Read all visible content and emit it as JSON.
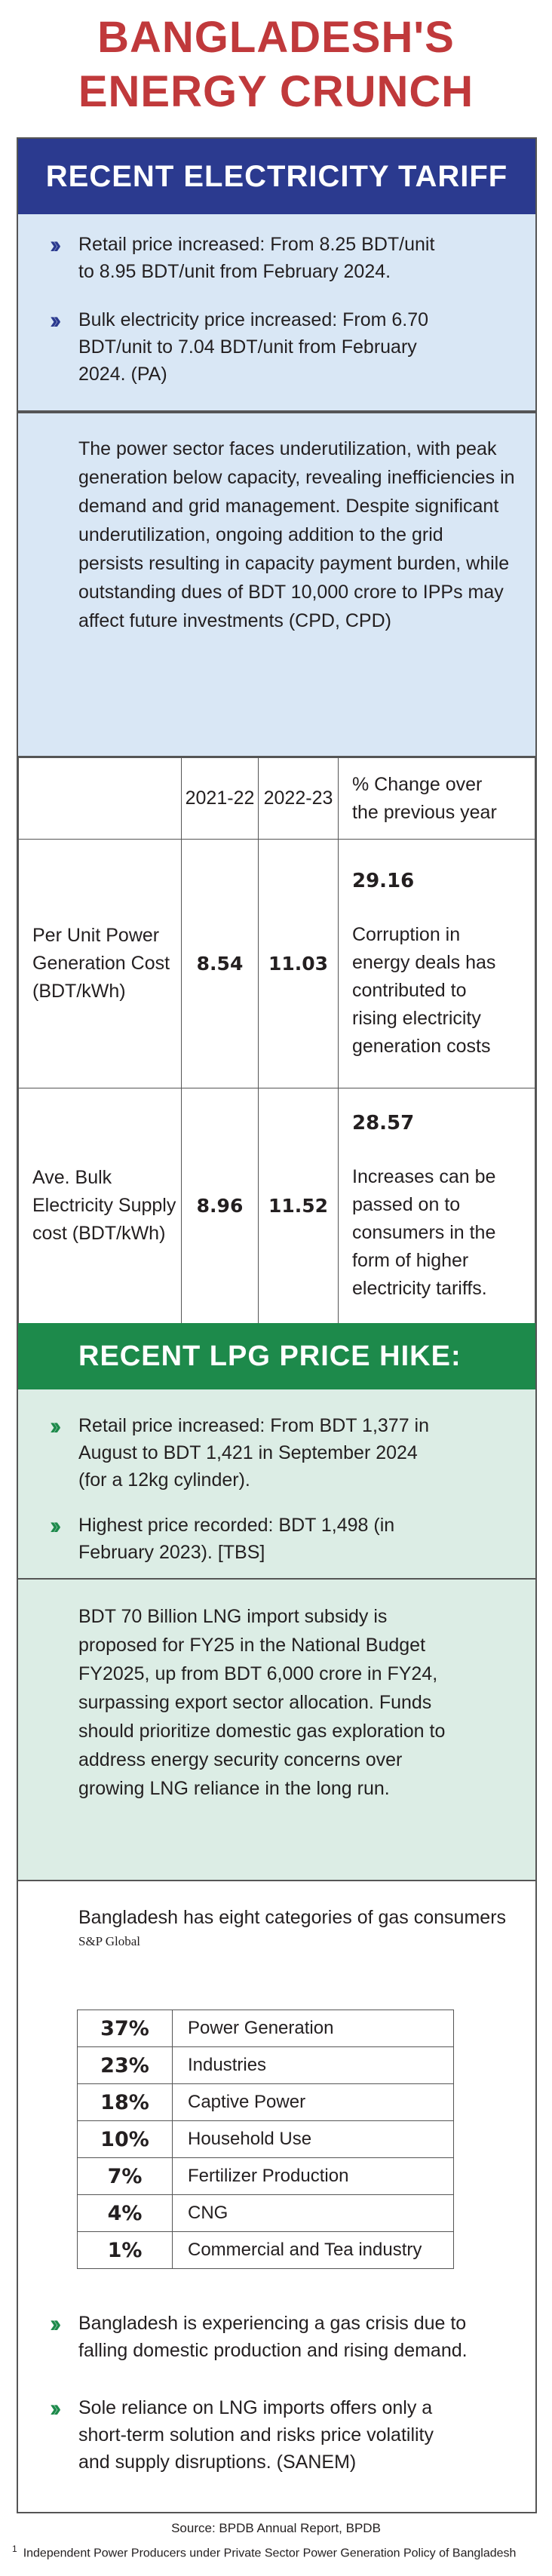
{
  "title": {
    "line1": "BANGLADESH'S",
    "line2": "ENERGY CRUNCH"
  },
  "electricity": {
    "heading": "RECENT ELECTRICITY TARIFF HIKE:",
    "bullets": [
      {
        "line1": "Retail price increased: From 8.25 BDT/unit",
        "line2": "to 8.95 BDT/unit from February 2024."
      },
      {
        "line1": "Bulk electricity price increased: From 6.70",
        "line2": "BDT/unit to 7.04 BDT/unit from February",
        "line3": "2024. (PA)"
      }
    ],
    "paragraph": [
      "The power sector faces underutilization, with peak",
      "generation below capacity, revealing inefficiencies in",
      "demand and grid management. Despite significant",
      "underutilization, ongoing addition to the grid",
      "persists resulting in capacity payment burden, while",
      "outstanding dues of BDT 10,000 crore to IPPs  may",
      "affect future investments (CPD, CPD)"
    ],
    "table": {
      "headers": {
        "col1": "2021-22",
        "col2": "2022-23",
        "col3_line1": "% Change over",
        "col3_line2": "the previous year"
      },
      "rows": [
        {
          "label": [
            "Per Unit  Power",
            "Generation Cost",
            "(BDT/kWh)"
          ],
          "v1": "8.54",
          "v2": "11.03",
          "change": "29.16",
          "note": [
            "Corruption in",
            "energy deals has",
            "contributed to",
            "rising electricity",
            "generation costs"
          ]
        },
        {
          "label": [
            "Ave. Bulk",
            "Electricity Supply",
            "cost (BDT/kWh)"
          ],
          "v1": "8.96",
          "v2": "11.52",
          "change": "28.57",
          "note": [
            "Increases can be",
            "passed on to",
            "consumers in the",
            "form of higher",
            "electricity tariffs."
          ]
        }
      ]
    }
  },
  "lpg": {
    "heading": "RECENT LPG PRICE HIKE:",
    "bullets": [
      {
        "line1": "Retail price increased: From BDT 1,377 in",
        "line2": "August to BDT 1,421 in September 2024",
        "line3": "(for a 12kg cylinder)."
      },
      {
        "line1": "Highest price recorded: BDT 1,498 (in",
        "line2": "February 2023). [TBS]"
      }
    ],
    "paragraph": [
      "BDT 70  Billion  LNG import subsidy is",
      "proposed for FY25 in the National Budget",
      "FY2025, up from BDT 6,000 crore in FY24,",
      "surpassing export sector allocation. Funds",
      "should prioritize domestic gas exploration to",
      "address energy security concerns over",
      "growing LNG reliance in the long run."
    ]
  },
  "gas": {
    "intro": "Bangladesh has eight categories of gas consumers",
    "intro_source": "S&P Global",
    "categories": [
      {
        "pct": "37%",
        "label": "Power Generation"
      },
      {
        "pct": "23%",
        "label": "Industries"
      },
      {
        "pct": "18%",
        "label": "Captive Power"
      },
      {
        "pct": "10%",
        "label": "Household Use"
      },
      {
        "pct": "7%",
        "label": "Fertilizer Production"
      },
      {
        "pct": "4%",
        "label": "CNG"
      },
      {
        "pct": "1%",
        "label": "Commercial and Tea industry"
      }
    ],
    "bullets": [
      {
        "line1": "Bangladesh is experiencing a gas crisis due to",
        "line2": "falling domestic production and rising demand."
      },
      {
        "line1": "Sole reliance on LNG imports offers only a",
        "line2": "short-term solution and risks price volatility",
        "line3": "and supply disruptions. (SANEM)"
      }
    ]
  },
  "source": "Source: BPDB Annual Report, BPDB",
  "footnote": {
    "mark": "1",
    "text": "Independent Power Producers under Private Sector Power Generation Policy of Bangladesh"
  },
  "icons": {
    "bullet": "double-chevron-right-icon"
  },
  "colors": {
    "title": "#c0393b",
    "blue_bar": "#2b3a8f",
    "blue_panel": "#d9e7f5",
    "green_bar": "#1d8a4b",
    "green_panel": "#dcede5"
  }
}
